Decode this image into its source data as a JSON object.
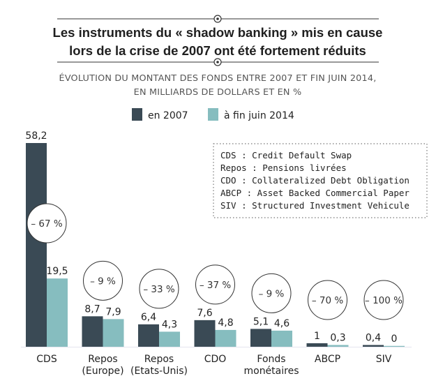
{
  "title": {
    "line1": "Les instruments du « shadow banking » mis en cause",
    "line2": "lors de la crise de 2007 ont été fortement réduits"
  },
  "subtitle": {
    "line1": "ÉVOLUTION DU MONTANT DES FONDS ENTRE 2007 ET FIN JUIN 2014,",
    "line2": "EN MILLIARDS DE DOLLARS ET EN %"
  },
  "colors": {
    "series_2007": "#3a4a55",
    "series_2014": "#86bdbf"
  },
  "chart_data": {
    "type": "bar",
    "title": "Les instruments du « shadow banking » mis en cause lors de la crise de 2007 ont été fortement réduits",
    "subtitle": "ÉVOLUTION DU MONTANT DES FONDS ENTRE 2007 ET FIN JUIN 2014, EN MILLIARDS DE DOLLARS ET EN %",
    "xlabel": "",
    "ylabel": "",
    "ylim": [
      0,
      58.2
    ],
    "legend_position": "top",
    "categories": [
      [
        "CDS"
      ],
      [
        "Repos",
        "(Europe)"
      ],
      [
        "Repos",
        "(Etats-Unis)"
      ],
      [
        "CDO"
      ],
      [
        "Fonds",
        "monétaires"
      ],
      [
        "ABCP"
      ],
      [
        "SIV"
      ]
    ],
    "series": [
      {
        "name": "en 2007",
        "values": [
          58.2,
          8.7,
          6.4,
          7.6,
          5.1,
          1,
          0.4
        ],
        "labels": [
          "58,2",
          "8,7",
          "6,4",
          "7,6",
          "5,1",
          "1",
          "0,4"
        ]
      },
      {
        "name": "à fin juin 2014",
        "values": [
          19.5,
          7.9,
          4.3,
          4.8,
          4.6,
          0.3,
          0
        ],
        "labels": [
          "19,5",
          "7,9",
          "4,3",
          "4,8",
          "4,6",
          "0,3",
          "0"
        ]
      }
    ],
    "changes": [
      "– 67 %",
      "– 9 %",
      "– 33 %",
      "– 37 %",
      "– 9 %",
      "– 70 %",
      "– 100 %"
    ]
  },
  "glossary": [
    "CDS : Credit Default Swap",
    "Repos : Pensions livrées",
    "CDO : Collateralized Debt Obligation",
    "ABCP : Asset Backed Commercial Paper",
    "SIV : Structured Investment Vehicule"
  ]
}
